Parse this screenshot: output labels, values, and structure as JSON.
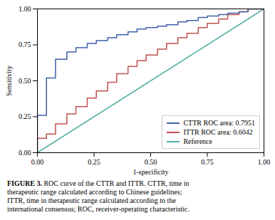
{
  "chart_data": {
    "type": "line",
    "xlabel": "1-specificity",
    "ylabel": "Sensitivity",
    "caption_bold": "FIGURE 3.",
    "caption": " ROC curve of the CTTR and ITTR. CTTR, time in\ntherapeutic range calculated according to Chinese guidelines;\nITTR, time in therapeutic range calculated according to the\ninternational consensus; ROC, receiver-operating characteristic.",
    "xlim": [
      0,
      1
    ],
    "ylim": [
      0,
      1
    ],
    "xticks": [
      {
        "value": 0,
        "label": "0.00"
      },
      {
        "value": 0.25,
        "label": "0.25"
      },
      {
        "value": 0.5,
        "label": "0.50"
      },
      {
        "value": 0.75,
        "label": "0.75"
      },
      {
        "value": 1,
        "label": "1.00"
      }
    ],
    "yticks": [
      {
        "value": 0,
        "label": "0.00"
      },
      {
        "value": 0.25,
        "label": "0.25"
      },
      {
        "value": 0.5,
        "label": "0.50"
      },
      {
        "value": 0.75,
        "label": "0.75"
      },
      {
        "value": 1,
        "label": "1.00"
      }
    ],
    "grid": false,
    "legend": "lower right",
    "series": [
      {
        "name": "CTTR ROC area: 0.7951",
        "color": "#3c5fa8",
        "x": [
          0.0,
          0.0,
          0.04,
          0.04,
          0.08,
          0.08,
          0.13,
          0.13,
          0.17,
          0.17,
          0.22,
          0.22,
          0.26,
          0.26,
          0.31,
          0.31,
          0.35,
          0.35,
          0.4,
          0.4,
          0.44,
          0.44,
          0.48,
          0.48,
          0.53,
          0.53,
          0.57,
          0.57,
          0.62,
          0.62,
          0.66,
          0.66,
          0.71,
          0.71,
          0.75,
          0.75,
          0.8,
          0.8,
          0.84,
          0.84,
          0.89,
          0.89,
          0.93,
          0.93,
          1.0
        ],
        "values": [
          0.0,
          0.26,
          0.26,
          0.52,
          0.52,
          0.65,
          0.65,
          0.7,
          0.7,
          0.73,
          0.73,
          0.76,
          0.76,
          0.78,
          0.78,
          0.8,
          0.8,
          0.82,
          0.82,
          0.84,
          0.84,
          0.86,
          0.86,
          0.87,
          0.87,
          0.88,
          0.88,
          0.89,
          0.89,
          0.91,
          0.91,
          0.92,
          0.92,
          0.94,
          0.94,
          0.95,
          0.95,
          0.96,
          0.96,
          0.97,
          0.97,
          0.98,
          0.98,
          1.0,
          1.0
        ]
      },
      {
        "name": "ITTR ROC area: 0.6042",
        "color": "#c0504d",
        "x": [
          0.0,
          0.0,
          0.04,
          0.04,
          0.08,
          0.08,
          0.13,
          0.13,
          0.17,
          0.17,
          0.22,
          0.22,
          0.26,
          0.26,
          0.31,
          0.31,
          0.35,
          0.35,
          0.4,
          0.4,
          0.44,
          0.44,
          0.48,
          0.48,
          0.53,
          0.53,
          0.57,
          0.57,
          0.62,
          0.62,
          0.66,
          0.66,
          0.71,
          0.71,
          0.75,
          0.75,
          0.8,
          0.8,
          0.84,
          0.84,
          0.89,
          0.89,
          0.93,
          0.93,
          1.0
        ],
        "values": [
          0.0,
          0.1,
          0.1,
          0.13,
          0.13,
          0.2,
          0.2,
          0.27,
          0.27,
          0.32,
          0.32,
          0.38,
          0.38,
          0.43,
          0.43,
          0.49,
          0.49,
          0.55,
          0.55,
          0.6,
          0.6,
          0.64,
          0.64,
          0.68,
          0.68,
          0.72,
          0.72,
          0.76,
          0.76,
          0.8,
          0.8,
          0.83,
          0.83,
          0.87,
          0.87,
          0.9,
          0.9,
          0.93,
          0.93,
          0.96,
          0.96,
          0.98,
          0.98,
          1.0,
          1.0
        ]
      },
      {
        "name": "Reference",
        "color": "#4dada0",
        "x": [
          0,
          1
        ],
        "values": [
          0,
          1
        ]
      }
    ]
  }
}
